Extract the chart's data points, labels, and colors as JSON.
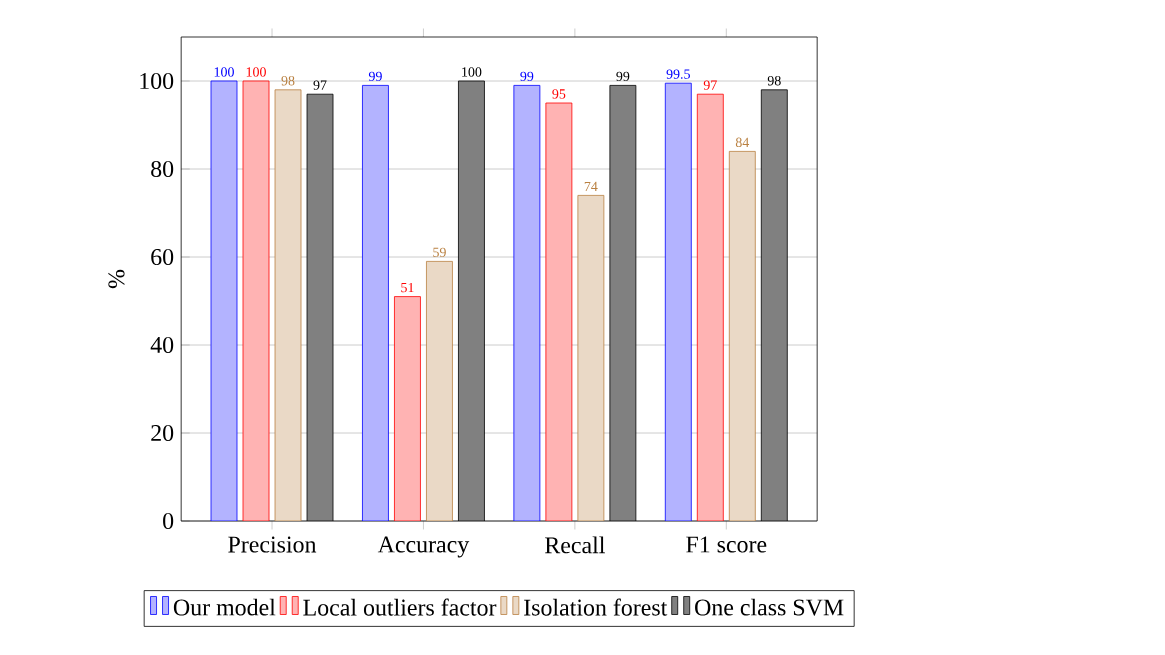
{
  "chart_data": {
    "type": "bar",
    "ylabel": "%",
    "categories": [
      "Precision",
      "Accuracy",
      "Recall",
      "F1 score"
    ],
    "series": [
      {
        "name": "Our model",
        "color": "#b3b3ff",
        "values": [
          100,
          99,
          99,
          99.5
        ]
      },
      {
        "name": "Local outliers factor",
        "color": "#ffb3b3",
        "values": [
          100,
          51,
          95,
          97
        ]
      },
      {
        "name": "Isolation forest",
        "color": "#ead9c6",
        "values": [
          98,
          59,
          74,
          84
        ]
      },
      {
        "name": "One class SVM",
        "color": "#808080",
        "values": [
          97,
          100,
          99,
          98
        ]
      }
    ],
    "ylim": [
      0,
      110
    ],
    "yticks": [
      0,
      20,
      40,
      60,
      80,
      100
    ],
    "grid": "y",
    "legend": "bottom",
    "data_labels": true
  }
}
